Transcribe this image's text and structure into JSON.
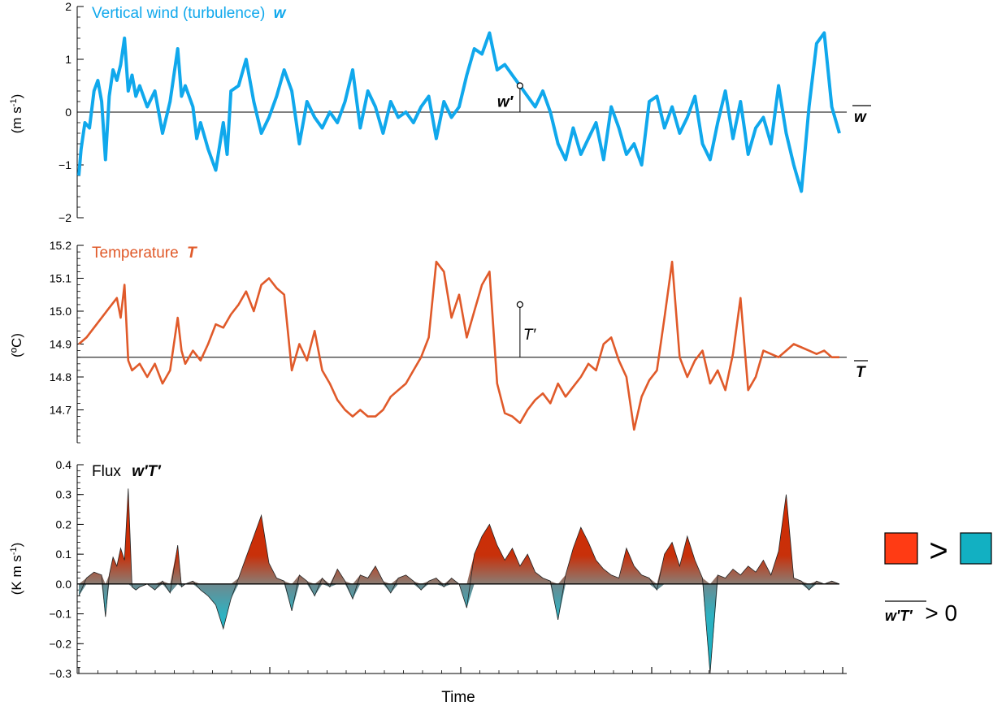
{
  "chart_data": [
    {
      "type": "line",
      "title": "Vertical wind (turbulence)",
      "title_symbol": "w",
      "ylabel": "(m s",
      "ylabel_sup": "-1",
      "ylabel_close": ")",
      "ylim": [
        -2,
        2
      ],
      "yticks": [
        "−2",
        "−1",
        "0",
        "1",
        "2"
      ],
      "ytick_values": [
        -2,
        -1,
        0,
        1,
        2
      ],
      "mean_value": 0,
      "mean_label": "w",
      "perturbation_label": "w′",
      "perturbation_point": {
        "x": 0.58,
        "y": 0.5
      },
      "color": "#10a8ec",
      "series": [
        {
          "x": [
            0.0,
            0.003,
            0.008,
            0.014,
            0.02,
            0.025,
            0.03,
            0.035,
            0.04,
            0.045,
            0.05,
            0.055,
            0.06,
            0.065,
            0.07,
            0.075,
            0.08,
            0.09,
            0.1,
            0.11,
            0.12,
            0.13,
            0.135,
            0.14,
            0.145,
            0.15,
            0.155,
            0.16,
            0.17,
            0.18,
            0.19,
            0.195,
            0.2,
            0.21,
            0.22,
            0.23,
            0.24,
            0.25,
            0.26,
            0.27,
            0.28,
            0.29,
            0.3,
            0.31,
            0.32,
            0.33,
            0.34,
            0.35,
            0.36,
            0.37,
            0.38,
            0.39,
            0.4,
            0.41,
            0.42,
            0.43,
            0.44,
            0.45,
            0.46,
            0.47,
            0.48,
            0.49,
            0.5,
            0.51,
            0.52,
            0.53,
            0.54,
            0.55,
            0.56,
            0.57,
            0.58,
            0.59,
            0.6,
            0.61,
            0.62,
            0.63,
            0.64,
            0.65,
            0.66,
            0.67,
            0.68,
            0.69,
            0.7,
            0.71,
            0.72,
            0.73,
            0.74,
            0.75,
            0.76,
            0.77,
            0.78,
            0.79,
            0.8,
            0.81,
            0.82,
            0.83,
            0.84,
            0.85,
            0.86,
            0.87,
            0.88,
            0.89,
            0.9,
            0.91,
            0.92,
            0.93,
            0.94,
            0.95,
            0.96,
            0.97,
            0.98,
            0.99,
            1.0
          ],
          "y": [
            -1.2,
            -0.7,
            -0.2,
            -0.3,
            0.4,
            0.6,
            0.2,
            -0.9,
            0.3,
            0.8,
            0.6,
            0.9,
            1.4,
            0.4,
            0.7,
            0.3,
            0.5,
            0.1,
            0.4,
            -0.4,
            0.2,
            1.2,
            0.3,
            0.5,
            0.3,
            0.1,
            -0.5,
            -0.2,
            -0.7,
            -1.1,
            -0.2,
            -0.8,
            0.4,
            0.5,
            1.0,
            0.2,
            -0.4,
            -0.1,
            0.3,
            0.8,
            0.4,
            -0.6,
            0.2,
            -0.1,
            -0.3,
            0.0,
            -0.2,
            0.2,
            0.8,
            -0.3,
            0.4,
            0.1,
            -0.4,
            0.2,
            -0.1,
            0.0,
            -0.2,
            0.1,
            0.3,
            -0.5,
            0.2,
            -0.1,
            0.1,
            0.7,
            1.2,
            1.1,
            1.5,
            0.8,
            0.9,
            0.7,
            0.5,
            0.3,
            0.1,
            0.4,
            0.0,
            -0.6,
            -0.9,
            -0.3,
            -0.8,
            -0.5,
            -0.2,
            -0.9,
            0.1,
            -0.3,
            -0.8,
            -0.6,
            -1.0,
            0.2,
            0.3,
            -0.3,
            0.1,
            -0.4,
            -0.1,
            0.3,
            -0.6,
            -0.9,
            -0.2,
            0.4,
            -0.5,
            0.2,
            -0.8,
            -0.3,
            -0.1,
            -0.6,
            0.5,
            -0.4,
            -1.0,
            -1.5,
            0.1,
            1.3,
            1.5,
            0.1,
            -0.4
          ]
        }
      ]
    },
    {
      "type": "line",
      "title": "Temperature",
      "title_symbol": "T",
      "ylabel": "(ºC)",
      "ylim": [
        14.6,
        15.2
      ],
      "yticks": [
        "14.7",
        "14.8",
        "14.9",
        "15.0",
        "15.1",
        "15.2"
      ],
      "ytick_values": [
        14.7,
        14.8,
        14.9,
        15.0,
        15.1,
        15.2
      ],
      "mean_value": 14.86,
      "mean_label": "T",
      "perturbation_label": "T′",
      "perturbation_point": {
        "x": 0.58,
        "y": 15.02
      },
      "color": "#e05a2a",
      "series": [
        {
          "x": [
            0.0,
            0.01,
            0.02,
            0.03,
            0.04,
            0.05,
            0.055,
            0.06,
            0.065,
            0.07,
            0.075,
            0.08,
            0.09,
            0.1,
            0.11,
            0.12,
            0.13,
            0.135,
            0.14,
            0.15,
            0.16,
            0.17,
            0.18,
            0.19,
            0.2,
            0.21,
            0.22,
            0.23,
            0.24,
            0.25,
            0.26,
            0.27,
            0.28,
            0.29,
            0.3,
            0.31,
            0.32,
            0.33,
            0.34,
            0.35,
            0.36,
            0.37,
            0.38,
            0.39,
            0.4,
            0.41,
            0.42,
            0.43,
            0.44,
            0.45,
            0.46,
            0.47,
            0.48,
            0.49,
            0.5,
            0.51,
            0.52,
            0.53,
            0.54,
            0.55,
            0.56,
            0.57,
            0.58,
            0.59,
            0.6,
            0.61,
            0.62,
            0.63,
            0.64,
            0.65,
            0.66,
            0.67,
            0.68,
            0.69,
            0.7,
            0.71,
            0.72,
            0.73,
            0.74,
            0.75,
            0.76,
            0.77,
            0.78,
            0.79,
            0.8,
            0.81,
            0.82,
            0.83,
            0.84,
            0.85,
            0.86,
            0.87,
            0.88,
            0.89,
            0.9,
            0.91,
            0.92,
            0.93,
            0.94,
            0.95,
            0.96,
            0.97,
            0.98,
            0.99,
            1.0
          ],
          "y": [
            14.9,
            14.92,
            14.95,
            14.98,
            15.01,
            15.04,
            14.98,
            15.08,
            14.85,
            14.82,
            14.83,
            14.84,
            14.8,
            14.84,
            14.78,
            14.82,
            14.98,
            14.88,
            14.84,
            14.88,
            14.85,
            14.9,
            14.96,
            14.95,
            14.99,
            15.02,
            15.06,
            15.0,
            15.08,
            15.1,
            15.07,
            15.05,
            14.82,
            14.9,
            14.85,
            14.94,
            14.82,
            14.78,
            14.73,
            14.7,
            14.68,
            14.7,
            14.68,
            14.68,
            14.7,
            14.74,
            14.76,
            14.78,
            14.82,
            14.86,
            14.92,
            15.15,
            15.12,
            14.98,
            15.05,
            14.92,
            15.0,
            15.08,
            15.12,
            14.78,
            14.69,
            14.68,
            14.66,
            14.7,
            14.73,
            14.75,
            14.72,
            14.78,
            14.74,
            14.77,
            14.8,
            14.84,
            14.82,
            14.9,
            14.92,
            14.85,
            14.8,
            14.64,
            14.74,
            14.79,
            14.82,
            14.98,
            15.15,
            14.86,
            14.8,
            14.85,
            14.88,
            14.78,
            14.82,
            14.76,
            14.87,
            15.04,
            14.76,
            14.8,
            14.88,
            14.87,
            14.86,
            14.88,
            14.9,
            14.89,
            14.88,
            14.87,
            14.88,
            14.86,
            14.86
          ]
        }
      ]
    },
    {
      "type": "area",
      "title": "Flux",
      "title_symbol": "w′T′",
      "xlabel": "Time",
      "ylabel": "(K m s",
      "ylabel_sup": "-1",
      "ylabel_close": ")",
      "ylim": [
        -0.3,
        0.4
      ],
      "yticks": [
        "−0.3",
        "−0.2",
        "−0.1",
        "0.0",
        "0.1",
        "0.2",
        "0.3",
        "0.4"
      ],
      "ytick_values": [
        -0.3,
        -0.2,
        -0.1,
        0.0,
        0.1,
        0.2,
        0.3,
        0.4
      ],
      "positive_color": "#d42a00",
      "negative_color": "#1ab0c0",
      "series": [
        {
          "x": [
            0.0,
            0.01,
            0.02,
            0.03,
            0.035,
            0.04,
            0.045,
            0.05,
            0.055,
            0.06,
            0.065,
            0.07,
            0.075,
            0.08,
            0.09,
            0.1,
            0.11,
            0.12,
            0.13,
            0.135,
            0.14,
            0.15,
            0.16,
            0.17,
            0.18,
            0.19,
            0.2,
            0.21,
            0.22,
            0.23,
            0.24,
            0.25,
            0.26,
            0.27,
            0.28,
            0.29,
            0.3,
            0.31,
            0.32,
            0.33,
            0.34,
            0.35,
            0.36,
            0.37,
            0.38,
            0.39,
            0.4,
            0.41,
            0.42,
            0.43,
            0.44,
            0.45,
            0.46,
            0.47,
            0.48,
            0.49,
            0.5,
            0.51,
            0.52,
            0.53,
            0.54,
            0.55,
            0.56,
            0.57,
            0.58,
            0.59,
            0.6,
            0.61,
            0.62,
            0.63,
            0.64,
            0.65,
            0.66,
            0.67,
            0.68,
            0.69,
            0.7,
            0.71,
            0.72,
            0.73,
            0.74,
            0.75,
            0.76,
            0.77,
            0.78,
            0.79,
            0.8,
            0.81,
            0.82,
            0.83,
            0.84,
            0.85,
            0.86,
            0.87,
            0.88,
            0.89,
            0.9,
            0.91,
            0.92,
            0.93,
            0.94,
            0.95,
            0.96,
            0.97,
            0.98,
            0.99,
            1.0
          ],
          "y": [
            -0.04,
            0.02,
            0.04,
            0.03,
            -0.11,
            0.03,
            0.09,
            0.06,
            0.12,
            0.08,
            0.32,
            -0.01,
            -0.02,
            -0.01,
            0.0,
            -0.02,
            0.01,
            -0.03,
            0.13,
            -0.01,
            0.0,
            0.01,
            -0.02,
            -0.04,
            -0.07,
            -0.15,
            -0.05,
            0.02,
            0.09,
            0.16,
            0.23,
            0.07,
            0.02,
            0.01,
            -0.09,
            0.03,
            0.01,
            -0.04,
            0.02,
            -0.01,
            0.05,
            0.01,
            -0.05,
            0.03,
            0.02,
            0.06,
            0.01,
            -0.03,
            0.02,
            0.03,
            0.01,
            -0.02,
            0.01,
            0.02,
            -0.01,
            0.02,
            0.0,
            -0.08,
            0.1,
            0.16,
            0.2,
            0.13,
            0.08,
            0.12,
            0.06,
            0.1,
            0.04,
            0.02,
            0.01,
            -0.12,
            0.03,
            0.12,
            0.19,
            0.14,
            0.08,
            0.05,
            0.03,
            0.02,
            0.12,
            0.06,
            0.03,
            0.02,
            -0.02,
            0.1,
            0.14,
            0.06,
            0.16,
            0.08,
            0.02,
            -0.3,
            0.03,
            0.02,
            0.05,
            0.03,
            0.06,
            0.04,
            0.08,
            0.03,
            0.11,
            0.3,
            0.02,
            0.01,
            -0.02,
            0.01,
            0.0,
            0.01,
            0.0
          ]
        }
      ]
    }
  ],
  "legend": {
    "symbol": "w′T′",
    "relation": "> 0",
    "comparator": ">",
    "positive_color": "#ff3b14",
    "negative_color": "#12b0c2"
  }
}
